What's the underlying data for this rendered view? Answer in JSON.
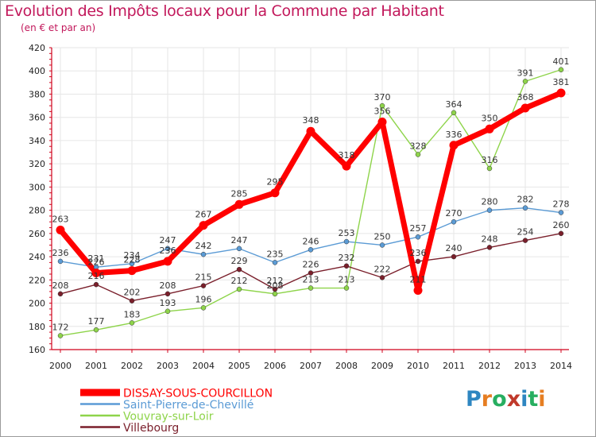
{
  "chart_data": {
    "type": "line",
    "title": "Evolution des Impôts locaux pour la Commune par Habitant",
    "subtitle": "(en € et par an)",
    "xlabel": "",
    "ylabel": "",
    "categories": [
      "2000",
      "2001",
      "2002",
      "2003",
      "2004",
      "2005",
      "2006",
      "2007",
      "2008",
      "2009",
      "2010",
      "2011",
      "2012",
      "2013",
      "2014"
    ],
    "yticks": [
      160,
      180,
      200,
      220,
      240,
      260,
      280,
      300,
      320,
      340,
      360,
      380,
      400,
      420
    ],
    "ylim": [
      160,
      420
    ],
    "grid": true,
    "legend_position": "bottom-left",
    "series": [
      {
        "name": "DISSAY-SOUS-COURCILLON",
        "color": "#ff0000",
        "highlight": true,
        "values": [
          263,
          226,
          228,
          236,
          267,
          285,
          295,
          348,
          318,
          356,
          211,
          336,
          350,
          368,
          381
        ]
      },
      {
        "name": "Saint-Pierre-de-Chevillé",
        "color": "#5b9bd5",
        "highlight": false,
        "values": [
          236,
          231,
          234,
          247,
          242,
          247,
          235,
          246,
          253,
          250,
          257,
          270,
          280,
          282,
          278
        ]
      },
      {
        "name": "Vouvray-sur-Loir",
        "color": "#8ed44a",
        "highlight": false,
        "values": [
          172,
          177,
          183,
          193,
          196,
          212,
          208,
          213,
          213,
          370,
          328,
          364,
          316,
          391,
          401
        ]
      },
      {
        "name": "Villebourg",
        "color": "#7a1f2b",
        "highlight": false,
        "values": [
          208,
          216,
          202,
          208,
          215,
          229,
          212,
          226,
          232,
          222,
          236,
          240,
          248,
          254,
          260
        ]
      }
    ]
  },
  "logo": {
    "text": "Proxiti",
    "letters": [
      "P",
      "r",
      "o",
      "x",
      "i",
      "t",
      "i"
    ],
    "colors": [
      "#2e86c1",
      "#e67e22",
      "#27ae60",
      "#c0392b",
      "#2e86c1",
      "#27ae60",
      "#e67e22"
    ]
  }
}
